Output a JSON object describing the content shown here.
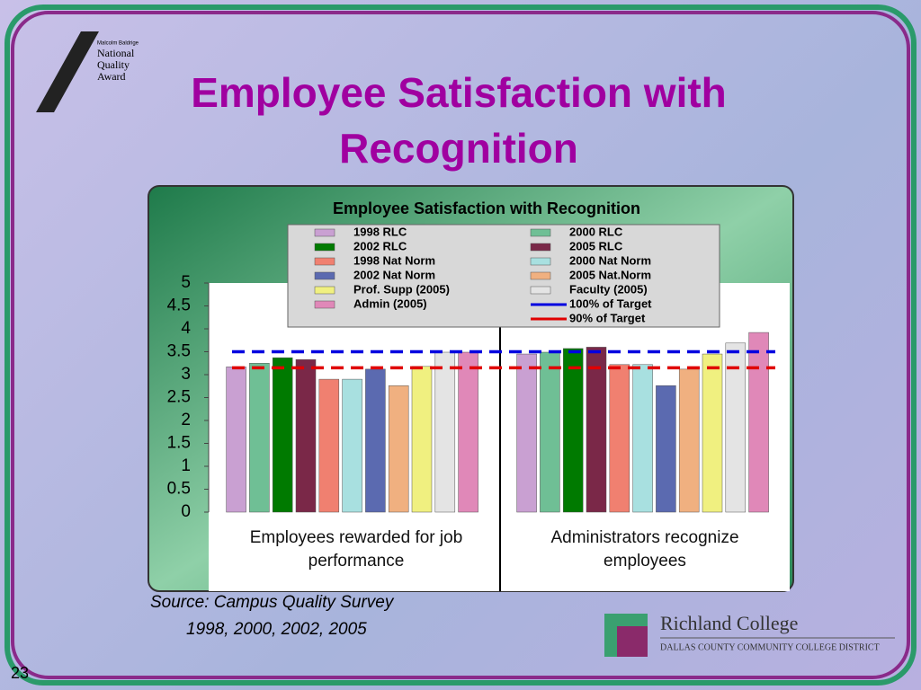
{
  "slide": {
    "title": "Employee Satisfaction with Recognition",
    "logo_lines": [
      "Malcolm Baldrige",
      "National",
      "Quality",
      "Award"
    ],
    "source_lines": [
      "Source:  Campus Quality Survey",
      "1998, 2000, 2002, 2005"
    ],
    "college": "Richland College",
    "district": "DALLAS COUNTY COMMUNITY COLLEGE DISTRICT",
    "page_number": "23"
  },
  "chart_data": {
    "type": "bar",
    "title": "Employee Satisfaction with Recognition",
    "categories": [
      "Employees rewarded for job performance",
      "Administrators recognize employees"
    ],
    "series": [
      {
        "name": "1998 RLC",
        "color": "#c9a0d2",
        "values": [
          3.17,
          3.45
        ]
      },
      {
        "name": "2000 RLC",
        "color": "#6fbf95",
        "values": [
          3.25,
          3.49
        ]
      },
      {
        "name": "2002 RLC",
        "color": "#007a00",
        "values": [
          3.37,
          3.57
        ]
      },
      {
        "name": "2005 RLC",
        "color": "#7a2848",
        "values": [
          3.33,
          3.6
        ]
      },
      {
        "name": "1998 Nat Norm",
        "color": "#f08070",
        "values": [
          2.9,
          3.22
        ]
      },
      {
        "name": "2000 Nat Norm",
        "color": "#a8e0e0",
        "values": [
          2.9,
          3.22
        ]
      },
      {
        "name": "2002 Nat Norm",
        "color": "#5b6ab0",
        "values": [
          3.12,
          2.76
        ]
      },
      {
        "name": "2005 Nat.Norm",
        "color": "#f0b080",
        "values": [
          2.76,
          3.12
        ]
      },
      {
        "name": "Prof. Supp (2005)",
        "color": "#f0f080",
        "values": [
          3.18,
          3.45
        ]
      },
      {
        "name": "Faculty (2005)",
        "color": "#e4e4e4",
        "values": [
          3.49,
          3.69
        ]
      },
      {
        "name": "Admin (2005)",
        "color": "#e088b8",
        "values": [
          3.49,
          3.92
        ]
      }
    ],
    "reference_lines": [
      {
        "name": "100% of Target",
        "color": "#0000e0",
        "value": 3.5
      },
      {
        "name": "90% of Target",
        "color": "#e00000",
        "value": 3.15
      }
    ],
    "ylim": [
      0,
      5
    ],
    "yticks": [
      0,
      0.5,
      1,
      1.5,
      2,
      2.5,
      3,
      3.5,
      4,
      4.5,
      5
    ],
    "grid": false
  }
}
